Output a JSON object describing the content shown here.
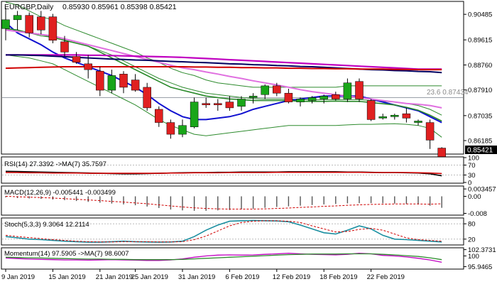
{
  "header": {
    "symbol": "EURGBP,Daily",
    "ohlc": "0.85930 0.85961 0.85398 0.85421"
  },
  "fib_label": "23.6 0.87434",
  "price_tag": "0.85421",
  "colors": {
    "bull": "#19a619",
    "bear": "#e02020",
    "bb": "#2e8b2e",
    "ma_blue": "#1010d0",
    "ma_green": "#2a8a2a",
    "ma_pink": "#e070e0",
    "ma_magenta": "#c000c0",
    "ma_navy": "#000060",
    "ma_red": "#d00000"
  },
  "chart_data": [
    {
      "type": "candlestick",
      "title": "EURGBP,Daily",
      "ylim": [
        0.8575,
        0.909
      ],
      "y_ticks": [
        "0.90485",
        "0.89615",
        "0.88760",
        "0.87910",
        "0.87035",
        "0.86185"
      ],
      "x_ticks": [
        "9 Jan 2019",
        "15 Jan 2019",
        "21 Jan 2019",
        "25 Jan 2019",
        "31 Jan 2019",
        "6 Feb 2019",
        "12 Feb 2019",
        "18 Feb 2019",
        "22 Feb 2019"
      ],
      "candles": [
        {
          "o": 0.9,
          "h": 0.907,
          "l": 0.896,
          "c": 0.903
        },
        {
          "o": 0.903,
          "h": 0.906,
          "l": 0.8995,
          "c": 0.9045
        },
        {
          "o": 0.9045,
          "h": 0.9055,
          "l": 0.897,
          "c": 0.8985
        },
        {
          "o": 0.904,
          "h": 0.906,
          "l": 0.898,
          "c": 0.8995
        },
        {
          "o": 0.904,
          "h": 0.905,
          "l": 0.895,
          "c": 0.896
        },
        {
          "o": 0.8955,
          "h": 0.8975,
          "l": 0.8905,
          "c": 0.892
        },
        {
          "o": 0.8905,
          "h": 0.892,
          "l": 0.888,
          "c": 0.8885
        },
        {
          "o": 0.888,
          "h": 0.891,
          "l": 0.883,
          "c": 0.886
        },
        {
          "o": 0.8855,
          "h": 0.887,
          "l": 0.877,
          "c": 0.879
        },
        {
          "o": 0.879,
          "h": 0.886,
          "l": 0.878,
          "c": 0.884
        },
        {
          "o": 0.8845,
          "h": 0.8855,
          "l": 0.878,
          "c": 0.88
        },
        {
          "o": 0.8825,
          "h": 0.8845,
          "l": 0.8785,
          "c": 0.879
        },
        {
          "o": 0.88,
          "h": 0.8815,
          "l": 0.872,
          "c": 0.873
        },
        {
          "o": 0.8725,
          "h": 0.8735,
          "l": 0.8665,
          "c": 0.868
        },
        {
          "o": 0.868,
          "h": 0.869,
          "l": 0.8625,
          "c": 0.864
        },
        {
          "o": 0.864,
          "h": 0.869,
          "l": 0.863,
          "c": 0.867
        },
        {
          "o": 0.8665,
          "h": 0.8765,
          "l": 0.866,
          "c": 0.875
        },
        {
          "o": 0.8745,
          "h": 0.8765,
          "l": 0.873,
          "c": 0.874
        },
        {
          "o": 0.8745,
          "h": 0.876,
          "l": 0.872,
          "c": 0.874
        },
        {
          "o": 0.875,
          "h": 0.877,
          "l": 0.872,
          "c": 0.873
        },
        {
          "o": 0.8735,
          "h": 0.877,
          "l": 0.872,
          "c": 0.876
        },
        {
          "o": 0.8765,
          "h": 0.878,
          "l": 0.8745,
          "c": 0.877
        },
        {
          "o": 0.8775,
          "h": 0.881,
          "l": 0.876,
          "c": 0.8805
        },
        {
          "o": 0.8805,
          "h": 0.8815,
          "l": 0.877,
          "c": 0.878
        },
        {
          "o": 0.878,
          "h": 0.8795,
          "l": 0.8745,
          "c": 0.875
        },
        {
          "o": 0.875,
          "h": 0.8765,
          "l": 0.8735,
          "c": 0.876
        },
        {
          "o": 0.8755,
          "h": 0.877,
          "l": 0.8745,
          "c": 0.8765
        },
        {
          "o": 0.876,
          "h": 0.8775,
          "l": 0.8745,
          "c": 0.877
        },
        {
          "o": 0.8775,
          "h": 0.8785,
          "l": 0.8755,
          "c": 0.876
        },
        {
          "o": 0.876,
          "h": 0.883,
          "l": 0.875,
          "c": 0.8815
        },
        {
          "o": 0.882,
          "h": 0.883,
          "l": 0.875,
          "c": 0.876
        },
        {
          "o": 0.8755,
          "h": 0.876,
          "l": 0.8685,
          "c": 0.869
        },
        {
          "o": 0.8695,
          "h": 0.871,
          "l": 0.869,
          "c": 0.87
        },
        {
          "o": 0.87,
          "h": 0.871,
          "l": 0.869,
          "c": 0.8705
        },
        {
          "o": 0.871,
          "h": 0.873,
          "l": 0.868,
          "c": 0.8695
        },
        {
          "o": 0.868,
          "h": 0.869,
          "l": 0.867,
          "c": 0.8685
        },
        {
          "o": 0.868,
          "h": 0.869,
          "l": 0.859,
          "c": 0.862
        },
        {
          "o": 0.8593,
          "h": 0.8596,
          "l": 0.854,
          "c": 0.8542
        }
      ],
      "bollinger": {
        "upper": [
          0.909,
          0.908,
          0.906,
          0.904,
          0.903,
          0.901,
          0.8995,
          0.898,
          0.8965,
          0.895,
          0.8935,
          0.892,
          0.89,
          0.8885,
          0.8865,
          0.885,
          0.884,
          0.8825,
          0.8815,
          0.881,
          0.8805,
          0.88,
          0.88,
          0.88,
          0.88,
          0.88,
          0.88,
          0.88,
          0.88,
          0.8805,
          0.8805,
          0.8805,
          0.8805,
          0.8805,
          0.8805,
          0.8805,
          0.8805,
          0.8805
        ],
        "middle": [
          0.9,
          0.8995,
          0.8985,
          0.8975,
          0.897,
          0.896,
          0.895,
          0.894,
          0.8925,
          0.891,
          0.889,
          0.887,
          0.885,
          0.883,
          0.8815,
          0.88,
          0.879,
          0.878,
          0.8775,
          0.877,
          0.8765,
          0.8762,
          0.876,
          0.876,
          0.876,
          0.8758,
          0.8757,
          0.8758,
          0.8758,
          0.8758,
          0.8758,
          0.8755,
          0.8752,
          0.875,
          0.8745,
          0.8738,
          0.8725,
          0.8705
        ],
        "lower": [
          0.891,
          0.8905,
          0.89,
          0.889,
          0.888,
          0.886,
          0.884,
          0.882,
          0.88,
          0.878,
          0.876,
          0.874,
          0.8715,
          0.869,
          0.867,
          0.8655,
          0.864,
          0.8635,
          0.864,
          0.8645,
          0.865,
          0.8655,
          0.866,
          0.8665,
          0.867,
          0.867,
          0.867,
          0.867,
          0.867,
          0.8672,
          0.8674,
          0.8674,
          0.8675,
          0.8676,
          0.8674,
          0.867,
          0.866,
          0.863
        ]
      },
      "moving_averages": [
        {
          "values": [
            0.902,
            0.8985,
            0.8965,
            0.8945,
            0.892,
            0.89,
            0.8885,
            0.887,
            0.8855,
            0.884,
            0.882,
            0.88,
            0.8775,
            0.8745,
            0.872,
            0.87,
            0.869,
            0.869,
            0.8695,
            0.87,
            0.871,
            0.8725,
            0.8735,
            0.8745,
            0.8755,
            0.876,
            0.8765,
            0.877,
            0.877,
            0.877,
            0.877,
            0.876,
            0.875,
            0.874,
            0.873,
            0.872,
            0.87,
            0.868
          ]
        },
        {
          "values": [
            0.9,
            0.8995,
            0.8985,
            0.898,
            0.897,
            0.896,
            0.895,
            0.894,
            0.892,
            0.89,
            0.888,
            0.886,
            0.884,
            0.882,
            0.88,
            0.879,
            0.878,
            0.877,
            0.8765,
            0.876,
            0.8758,
            0.8755,
            0.8755,
            0.8755,
            0.8755,
            0.8752,
            0.8752,
            0.8752,
            0.8753,
            0.8752,
            0.8752,
            0.8748,
            0.8744,
            0.874,
            0.8732,
            0.8722,
            0.8705,
            0.8685
          ]
        },
        {
          "values": [
            0.8995,
            0.899,
            0.8985,
            0.898,
            0.8975,
            0.8965,
            0.8955,
            0.8945,
            0.8935,
            0.8925,
            0.8915,
            0.8905,
            0.8895,
            0.8885,
            0.8875,
            0.8866,
            0.886,
            0.8852,
            0.8845,
            0.8837,
            0.883,
            0.8822,
            0.8815,
            0.8808,
            0.88,
            0.8792,
            0.8785,
            0.878,
            0.8775,
            0.877,
            0.8765,
            0.876,
            0.8755,
            0.875,
            0.8745,
            0.8742,
            0.8738,
            0.873
          ]
        },
        {
          "values": [
            0.891,
            0.891,
            0.891,
            0.891,
            0.891,
            0.891,
            0.891,
            0.8909,
            0.8909,
            0.8908,
            0.8907,
            0.8906,
            0.8905,
            0.8904,
            0.8903,
            0.8902,
            0.89,
            0.8898,
            0.8896,
            0.8894,
            0.8892,
            0.889,
            0.8888,
            0.8886,
            0.8884,
            0.8882,
            0.888,
            0.8878,
            0.8876,
            0.8874,
            0.8872,
            0.887,
            0.8868,
            0.8866,
            0.8864,
            0.8862,
            0.8862,
            0.8862
          ]
        },
        {
          "values": [
            0.891,
            0.891,
            0.8909,
            0.8908,
            0.8906,
            0.8904,
            0.8902,
            0.89,
            0.8898,
            0.8896,
            0.8895,
            0.8893,
            0.8892,
            0.889,
            0.8888,
            0.8887,
            0.8885,
            0.8884,
            0.8882,
            0.888,
            0.8879,
            0.8877,
            0.8876,
            0.8874,
            0.8873,
            0.8871,
            0.887,
            0.8868,
            0.8866,
            0.8864,
            0.8862,
            0.886,
            0.8859,
            0.8857,
            0.8856,
            0.8854,
            0.8853,
            0.885
          ]
        },
        {
          "values": [
            0.8865,
            0.8866,
            0.8867,
            0.8868,
            0.8869,
            0.887,
            0.887,
            0.887,
            0.887,
            0.887,
            0.887,
            0.887,
            0.887,
            0.887,
            0.887,
            0.887,
            0.8869,
            0.8869,
            0.8868,
            0.8868,
            0.8867,
            0.8867,
            0.8866,
            0.8866,
            0.8865,
            0.8865,
            0.8864,
            0.8864,
            0.8863,
            0.8863,
            0.8862,
            0.8862,
            0.8862,
            0.8861,
            0.8861,
            0.886,
            0.886,
            0.886
          ]
        }
      ],
      "fib_level": 0.87434
    },
    {
      "type": "line",
      "title": "RSI(14) 27.3392  ->MA(7) 35.7597",
      "ylim": [
        0,
        100
      ],
      "y_ticks": [
        "100",
        "70",
        "30",
        "0"
      ],
      "series": [
        {
          "values": [
            45,
            44,
            43,
            42,
            41,
            40,
            39,
            38,
            37,
            36,
            35,
            35,
            36,
            37,
            38,
            39,
            40,
            40,
            41,
            41,
            42,
            42,
            42,
            42,
            43,
            43,
            43,
            43,
            43,
            42,
            42,
            41,
            40,
            40,
            39,
            38,
            35,
            27
          ]
        },
        {
          "values": [
            40,
            40,
            39,
            39,
            38,
            38,
            38,
            37,
            37,
            37,
            37,
            37,
            37,
            37,
            38,
            38,
            39,
            39,
            39,
            40,
            40,
            40,
            40,
            41,
            41,
            41,
            41,
            41,
            41,
            41,
            41,
            40,
            40,
            40,
            40,
            39,
            38,
            36
          ]
        }
      ]
    },
    {
      "type": "bar",
      "title": "MACD(12,26,9) -0.005441  -0.003499",
      "ylim": [
        -0.0085,
        0.0045
      ],
      "y_ticks": [
        "0.003457",
        "0.00",
        "-0.008"
      ],
      "values": [
        -0.0005,
        -0.0008,
        -0.001,
        -0.0012,
        -0.0015,
        -0.0018,
        -0.0022,
        -0.0026,
        -0.003,
        -0.0034,
        -0.0038,
        -0.0042,
        -0.0048,
        -0.0055,
        -0.0062,
        -0.0066,
        -0.0068,
        -0.0068,
        -0.0066,
        -0.0064,
        -0.0061,
        -0.0058,
        -0.0054,
        -0.005,
        -0.0047,
        -0.0044,
        -0.0041,
        -0.0038,
        -0.0036,
        -0.0033,
        -0.0032,
        -0.0032,
        -0.0033,
        -0.0034,
        -0.0036,
        -0.0038,
        -0.0044,
        -0.0054
      ],
      "signal": [
        0.0,
        -0.0002,
        -0.0004,
        -0.0006,
        -0.0008,
        -0.0011,
        -0.0014,
        -0.0017,
        -0.002,
        -0.0024,
        -0.0027,
        -0.0031,
        -0.0035,
        -0.004,
        -0.0045,
        -0.005,
        -0.0054,
        -0.0057,
        -0.0059,
        -0.006,
        -0.006,
        -0.006,
        -0.0059,
        -0.0057,
        -0.0055,
        -0.0052,
        -0.005,
        -0.0047,
        -0.0045,
        -0.0042,
        -0.004,
        -0.0038,
        -0.0037,
        -0.0036,
        -0.0036,
        -0.0036,
        -0.0037,
        -0.0035
      ]
    },
    {
      "type": "line",
      "title": "Stoch(5,3,3) 9.3064  12.2114",
      "ylim": [
        0,
        100
      ],
      "y_ticks": [
        "80",
        "20"
      ],
      "series": [
        {
          "values": [
            30,
            25,
            20,
            18,
            15,
            12,
            10,
            8,
            8,
            10,
            12,
            10,
            9,
            8,
            9,
            12,
            30,
            55,
            75,
            90,
            92,
            93,
            92,
            91,
            88,
            75,
            60,
            45,
            40,
            55,
            72,
            60,
            35,
            20,
            18,
            15,
            12,
            9
          ]
        },
        {
          "values": [
            35,
            30,
            26,
            22,
            18,
            15,
            12,
            10,
            9,
            9,
            10,
            10,
            10,
            9,
            9,
            10,
            18,
            32,
            52,
            72,
            85,
            90,
            92,
            92,
            90,
            85,
            72,
            60,
            48,
            50,
            58,
            62,
            55,
            40,
            25,
            18,
            15,
            12
          ]
        }
      ]
    },
    {
      "type": "line",
      "title": "Momentum(14) 97.5905  ->MA(7) 98.6007",
      "ylim": [
        95.3,
        102.8
      ],
      "y_ticks": [
        "102.3731",
        "100",
        "95.9465"
      ],
      "series": [
        {
          "values": [
            99.2,
            99.0,
            98.8,
            98.7,
            98.6,
            98.5,
            98.5,
            98.4,
            98.5,
            98.6,
            98.5,
            98.4,
            98.3,
            98.3,
            98.5,
            98.9,
            99.5,
            100.0,
            100.3,
            100.4,
            100.3,
            100.4,
            100.6,
            100.8,
            101.0,
            100.8,
            100.6,
            100.5,
            100.4,
            100.6,
            101.0,
            100.8,
            100.2,
            100.0,
            99.6,
            99.1,
            98.5,
            97.6
          ]
        },
        {
          "values": [
            99.5,
            99.4,
            99.3,
            99.2,
            99.1,
            99.0,
            98.9,
            98.8,
            98.8,
            98.7,
            98.7,
            98.6,
            98.6,
            98.6,
            98.6,
            98.7,
            98.9,
            99.1,
            99.3,
            99.5,
            99.7,
            99.9,
            100.1,
            100.3,
            100.5,
            100.6,
            100.7,
            100.7,
            100.7,
            100.8,
            100.8,
            100.8,
            100.6,
            100.4,
            100.1,
            99.8,
            99.3,
            98.6
          ]
        }
      ]
    }
  ]
}
